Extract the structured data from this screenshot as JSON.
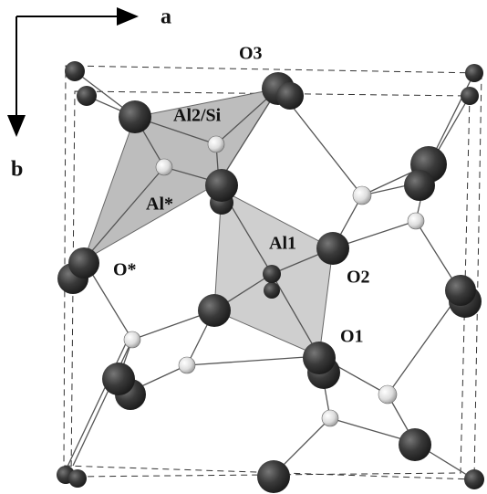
{
  "axes": {
    "a": "a",
    "b": "b"
  },
  "labels": {
    "o3": "O3",
    "al2si": "Al2/Si",
    "alstar": "Al*",
    "al1": "Al1",
    "ostar": "O*",
    "o2": "O2",
    "o1": "O1"
  }
}
